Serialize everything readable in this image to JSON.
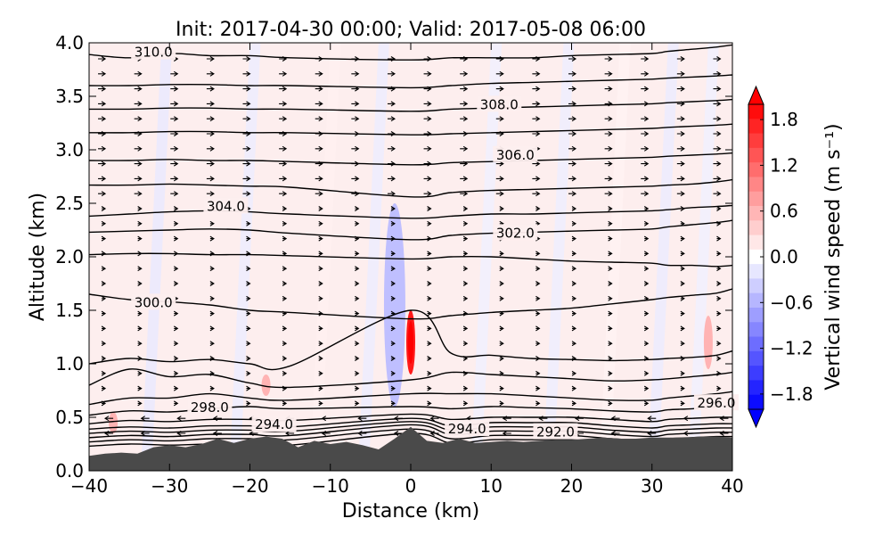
{
  "chart_data": {
    "type": "heatmap",
    "title": "Init: 2017-04-30 00:00; Valid: 2017-05-08 06:00",
    "xlabel": "Distance (km)",
    "ylabel": "Altitude (km)",
    "xlim": [
      -40,
      40
    ],
    "ylim": [
      0.0,
      4.0
    ],
    "x_ticks": [
      -40,
      -30,
      -20,
      -10,
      0,
      10,
      20,
      30,
      40
    ],
    "x_tick_labels": [
      "−40",
      "−30",
      "−20",
      "−10",
      "0",
      "10",
      "20",
      "30",
      "40"
    ],
    "y_ticks": [
      0.0,
      0.5,
      1.0,
      1.5,
      2.0,
      2.5,
      3.0,
      3.5,
      4.0
    ],
    "y_tick_labels": [
      "0.0",
      "0.5",
      "1.0",
      "1.5",
      "2.0",
      "2.5",
      "3.0",
      "3.5",
      "4.0"
    ],
    "colorbar": {
      "label": "Vertical wind speed (m s⁻¹)",
      "range": [
        -2.0,
        2.0
      ],
      "tick_values": [
        1.8,
        1.2,
        0.6,
        0.0,
        -0.6,
        -1.2,
        -1.8
      ],
      "tick_labels": [
        "1.8",
        "1.2",
        "0.6",
        "0.0",
        "−0.6",
        "−1.2",
        "−1.8"
      ],
      "colormap": "bwr",
      "extend": "both"
    },
    "contour_labels": [
      {
        "text": "310.0",
        "x": -32,
        "y": 3.92
      },
      {
        "text": "308.0",
        "x": 11,
        "y": 3.43
      },
      {
        "text": "306.0",
        "x": 13,
        "y": 2.96
      },
      {
        "text": "304.0",
        "x": -23,
        "y": 2.48
      },
      {
        "text": "302.0",
        "x": 13,
        "y": 2.23
      },
      {
        "text": "300.0",
        "x": -32,
        "y": 1.58
      },
      {
        "text": "298.0",
        "x": -25,
        "y": 0.6
      },
      {
        "text": "294.0",
        "x": -17,
        "y": 0.44
      },
      {
        "text": "294.0",
        "x": 7,
        "y": 0.4
      },
      {
        "text": "292.0",
        "x": 18,
        "y": 0.37
      },
      {
        "text": "296.0",
        "x": 38,
        "y": 0.64
      }
    ],
    "isentropes": [
      {
        "y": [
          0.23,
          0.25,
          0.24,
          0.25,
          0.25,
          0.24,
          0.35,
          0.26,
          0.29,
          0.29,
          0.29,
          0.26,
          0.24,
          0.26,
          0.27,
          0.28,
          0.28
        ]
      },
      {
        "y": [
          0.27,
          0.29,
          0.28,
          0.3,
          0.3,
          0.29,
          0.39,
          0.3,
          0.33,
          0.33,
          0.33,
          0.3,
          0.28,
          0.3,
          0.31,
          0.32,
          0.32
        ]
      },
      {
        "y": [
          0.31,
          0.33,
          0.32,
          0.34,
          0.34,
          0.33,
          0.43,
          0.34,
          0.37,
          0.37,
          0.37,
          0.34,
          0.32,
          0.34,
          0.35,
          0.36,
          0.36
        ]
      },
      {
        "y": [
          0.35,
          0.37,
          0.36,
          0.38,
          0.38,
          0.37,
          0.46,
          0.38,
          0.41,
          0.41,
          0.41,
          0.38,
          0.36,
          0.38,
          0.39,
          0.4,
          0.4
        ]
      },
      {
        "y": [
          0.39,
          0.41,
          0.4,
          0.42,
          0.42,
          0.41,
          0.49,
          0.42,
          0.45,
          0.45,
          0.45,
          0.42,
          0.4,
          0.42,
          0.43,
          0.44,
          0.44
        ]
      },
      {
        "y": [
          0.44,
          0.47,
          0.46,
          0.48,
          0.48,
          0.47,
          0.53,
          0.48,
          0.5,
          0.5,
          0.5,
          0.48,
          0.46,
          0.48,
          0.49,
          0.5,
          0.5
        ]
      },
      {
        "y": [
          0.52,
          0.56,
          0.55,
          0.58,
          0.6,
          0.58,
          0.6,
          0.58,
          0.6,
          0.59,
          0.58,
          0.56,
          0.55,
          0.57,
          0.58,
          0.6,
          0.62
        ]
      },
      {
        "y": [
          0.62,
          0.68,
          0.68,
          0.72,
          0.68,
          0.66,
          0.72,
          0.72,
          0.72,
          0.7,
          0.68,
          0.66,
          0.66,
          0.68,
          0.7,
          0.72,
          0.74
        ]
      },
      {
        "y": [
          0.8,
          0.95,
          0.88,
          0.9,
          0.82,
          0.78,
          0.85,
          0.92,
          0.9,
          0.88,
          0.86,
          0.84,
          0.85,
          0.86,
          0.88,
          0.9,
          0.92
        ]
      },
      {
        "y": [
          1.0,
          1.05,
          1.02,
          1.04,
          1.0,
          0.98,
          1.5,
          1.1,
          1.08,
          1.05,
          1.04,
          1.03,
          1.04,
          1.05,
          1.06,
          1.08,
          1.12
        ]
      },
      {
        "y": [
          1.65,
          1.6,
          1.58,
          1.55,
          1.5,
          1.48,
          1.42,
          1.45,
          1.48,
          1.5,
          1.52,
          1.56,
          1.6,
          1.62,
          1.64,
          1.66,
          1.7
        ]
      },
      {
        "y": [
          2.02,
          2.03,
          2.03,
          2.02,
          2.02,
          2.01,
          1.98,
          2.0,
          2.0,
          1.98,
          1.96,
          1.95,
          1.94,
          1.92,
          1.92,
          1.91,
          1.92
        ]
      },
      {
        "y": [
          2.23,
          2.24,
          2.25,
          2.26,
          2.25,
          2.22,
          2.16,
          2.2,
          2.22,
          2.23,
          2.24,
          2.25,
          2.26,
          2.28,
          2.3,
          2.32,
          2.34
        ]
      },
      {
        "y": [
          2.38,
          2.4,
          2.42,
          2.43,
          2.42,
          2.4,
          2.36,
          2.38,
          2.4,
          2.4,
          2.41,
          2.42,
          2.43,
          2.44,
          2.46,
          2.47,
          2.48
        ]
      },
      {
        "y": [
          2.67,
          2.67,
          2.68,
          2.67,
          2.66,
          2.65,
          2.56,
          2.6,
          2.62,
          2.63,
          2.64,
          2.65,
          2.66,
          2.67,
          2.68,
          2.7,
          2.72
        ]
      },
      {
        "y": [
          2.9,
          2.9,
          2.91,
          2.9,
          2.9,
          2.89,
          2.86,
          2.88,
          2.89,
          2.9,
          2.91,
          2.92,
          2.93,
          2.94,
          2.95,
          2.96,
          2.97
        ]
      },
      {
        "y": [
          3.16,
          3.16,
          3.17,
          3.17,
          3.16,
          3.16,
          3.14,
          3.15,
          3.16,
          3.17,
          3.18,
          3.19,
          3.2,
          3.21,
          3.22,
          3.23,
          3.24
        ]
      },
      {
        "y": [
          3.38,
          3.38,
          3.39,
          3.39,
          3.38,
          3.38,
          3.36,
          3.38,
          3.39,
          3.4,
          3.41,
          3.42,
          3.43,
          3.44,
          3.45,
          3.46,
          3.47
        ]
      },
      {
        "y": [
          3.6,
          3.6,
          3.61,
          3.61,
          3.6,
          3.6,
          3.58,
          3.6,
          3.62,
          3.63,
          3.64,
          3.65,
          3.66,
          3.67,
          3.68,
          3.69,
          3.7
        ]
      },
      {
        "y": [
          3.89,
          3.86,
          3.9,
          3.88,
          3.88,
          3.86,
          3.84,
          3.86,
          3.86,
          3.86,
          3.88,
          3.89,
          3.9,
          3.92,
          3.94,
          3.96,
          3.98
        ]
      }
    ],
    "contour_x": [
      -40,
      -35,
      -30,
      -25,
      -20,
      -15,
      0,
      5,
      10,
      15,
      20,
      25,
      30,
      32,
      35,
      38,
      40
    ],
    "terrain": {
      "x": [
        -40,
        -38,
        -36,
        -34,
        -32,
        -30,
        -28,
        -26,
        -24,
        -22,
        -20,
        -18,
        -16,
        -14,
        -12,
        -10,
        -8,
        -6,
        -4,
        -2,
        0,
        2,
        4,
        6,
        8,
        10,
        12,
        14,
        16,
        18,
        20,
        22,
        24,
        26,
        28,
        30,
        32,
        34,
        36,
        38,
        40
      ],
      "y": [
        0.14,
        0.16,
        0.17,
        0.16,
        0.22,
        0.24,
        0.22,
        0.25,
        0.3,
        0.26,
        0.3,
        0.32,
        0.3,
        0.22,
        0.28,
        0.25,
        0.27,
        0.24,
        0.2,
        0.3,
        0.41,
        0.28,
        0.26,
        0.3,
        0.26,
        0.27,
        0.28,
        0.27,
        0.28,
        0.29,
        0.29,
        0.3,
        0.31,
        0.3,
        0.3,
        0.31,
        0.31,
        0.31,
        0.32,
        0.32,
        0.31
      ]
    },
    "vertical_wind_features": [
      {
        "x": 0,
        "y_min": 0.9,
        "y_max": 1.5,
        "w": 1.8,
        "sign": "up"
      },
      {
        "x": -2,
        "y_min": 0.6,
        "y_max": 2.5,
        "w": -0.5,
        "sign": "down"
      },
      {
        "x": 37,
        "y_min": 0.95,
        "y_max": 1.45,
        "w": 0.6,
        "sign": "up"
      },
      {
        "x": -37,
        "y_min": 0.35,
        "y_max": 0.55,
        "w": 0.6,
        "sign": "up"
      },
      {
        "x": -18,
        "y_min": 0.7,
        "y_max": 0.9,
        "w": 0.6,
        "sign": "up"
      }
    ],
    "colors": {
      "terrain": "#4a4a4a",
      "contour": "#000000",
      "background_positive": "#fdeeee",
      "background_negative": "#e8e8fb"
    }
  }
}
